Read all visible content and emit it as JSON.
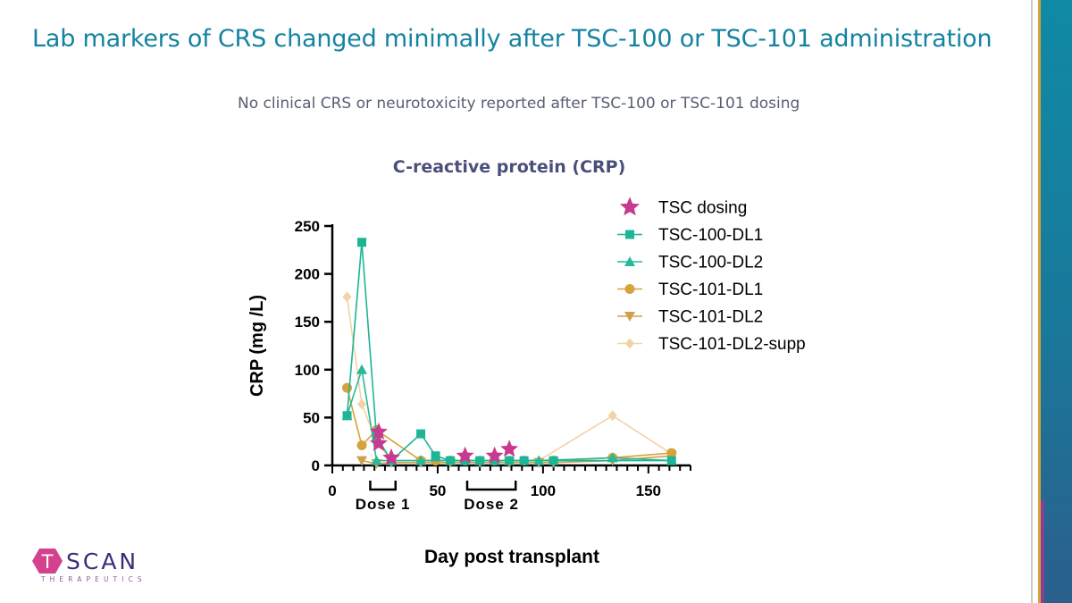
{
  "slide": {
    "title": "Lab markers of CRS changed minimally after TSC-100 or TSC-101 administration",
    "subtitle": "No clinical CRS or neurotoxicity reported after TSC-100 or TSC-101 dosing"
  },
  "logo": {
    "wordmark": "TSCAN",
    "subline": "THERAPEUTICS",
    "colors": {
      "hexagon": "#d4418e",
      "text": "#3f2a7a"
    }
  },
  "chart_data": {
    "type": "line",
    "title": "C-reactive protein (CRP)",
    "xlabel": "Day post transplant",
    "ylabel": "CRP (mg /L)",
    "xlim": [
      0,
      170
    ],
    "ylim": [
      0,
      250
    ],
    "x_ticks": [
      0,
      50,
      100,
      150
    ],
    "y_ticks": [
      0,
      50,
      100,
      150,
      200,
      250
    ],
    "grid": false,
    "legend_position": "top-right",
    "series": [
      {
        "name": "TSC dosing",
        "marker": "star",
        "color": "#c93a8f",
        "line": false,
        "points": [
          [
            22,
            35
          ],
          [
            22,
            23
          ],
          [
            28,
            8
          ],
          [
            63,
            10
          ],
          [
            77,
            10
          ],
          [
            84,
            17
          ]
        ]
      },
      {
        "name": "TSC-100-DL1",
        "marker": "square",
        "color": "#1db596",
        "points": [
          [
            7,
            52
          ],
          [
            14,
            233
          ],
          [
            21,
            30
          ],
          [
            28,
            5
          ],
          [
            42,
            33
          ],
          [
            49,
            10
          ],
          [
            56,
            5
          ],
          [
            63,
            5
          ],
          [
            70,
            5
          ],
          [
            77,
            5
          ],
          [
            84,
            5
          ],
          [
            91,
            5
          ],
          [
            105,
            5
          ],
          [
            161,
            5
          ]
        ]
      },
      {
        "name": "TSC-100-DL2",
        "marker": "triangle-up",
        "color": "#2ab89a",
        "points": [
          [
            7,
            52
          ],
          [
            14,
            100
          ],
          [
            21,
            5
          ],
          [
            28,
            5
          ],
          [
            42,
            5
          ],
          [
            56,
            5
          ],
          [
            70,
            5
          ],
          [
            84,
            5
          ],
          [
            98,
            5
          ],
          [
            133,
            8
          ],
          [
            161,
            5
          ]
        ]
      },
      {
        "name": "TSC-101-DL1",
        "marker": "circle",
        "color": "#d7a23c",
        "points": [
          [
            7,
            81
          ],
          [
            14,
            21
          ],
          [
            21,
            37
          ],
          [
            42,
            5
          ],
          [
            49,
            5
          ],
          [
            56,
            5
          ],
          [
            63,
            5
          ],
          [
            77,
            5
          ],
          [
            91,
            5
          ],
          [
            105,
            5
          ],
          [
            133,
            8
          ],
          [
            161,
            13
          ]
        ]
      },
      {
        "name": "TSC-101-DL2",
        "marker": "triangle-down",
        "color": "#d0a04a",
        "points": [
          [
            14,
            5
          ],
          [
            21,
            2
          ],
          [
            28,
            3
          ],
          [
            42,
            3
          ],
          [
            56,
            3
          ],
          [
            70,
            3
          ],
          [
            84,
            3
          ],
          [
            98,
            3
          ],
          [
            105,
            3
          ],
          [
            133,
            5
          ],
          [
            161,
            10
          ]
        ]
      },
      {
        "name": "TSC-101-DL2-supp",
        "marker": "diamond",
        "color": "#f2d3a3",
        "points": [
          [
            7,
            176
          ],
          [
            14,
            64
          ],
          [
            21,
            25
          ],
          [
            28,
            5
          ],
          [
            42,
            5
          ],
          [
            56,
            5
          ],
          [
            70,
            5
          ],
          [
            84,
            5
          ],
          [
            98,
            5
          ],
          [
            133,
            52
          ],
          [
            161,
            12
          ]
        ]
      }
    ],
    "annotations": [
      {
        "label": "Dose 1",
        "x_range": [
          18,
          30
        ]
      },
      {
        "label": "Dose 2",
        "x_range": [
          64,
          87
        ]
      }
    ]
  }
}
